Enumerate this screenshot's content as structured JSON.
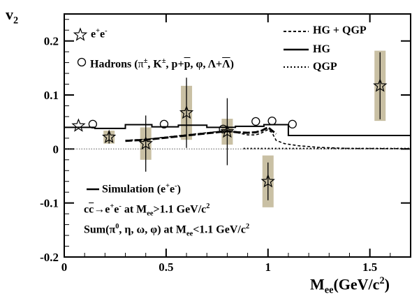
{
  "chart_data": {
    "type": "scatter",
    "xlabel": "M",
    "xlabel_sub": "ee",
    "xlabel_tail": "(GeV/c",
    "xlabel_sup": "2",
    "xlabel_close": ")",
    "ylabel": "v",
    "ylabel_sub": "2",
    "xlim": [
      0,
      1.7
    ],
    "ylim": [
      -0.2,
      0.25
    ],
    "x_ticks": [
      0,
      0.5,
      1,
      1.5
    ],
    "x_tick_labels": [
      "0",
      "0.5",
      "1",
      "1.5"
    ],
    "y_ticks": [
      -0.2,
      -0.1,
      0,
      0.1,
      0.2
    ],
    "y_tick_labels": [
      "-0.2",
      "-0.1",
      "0",
      "0.1",
      "0.2"
    ],
    "ee_points": [
      {
        "x": 0.22,
        "y": 0.022,
        "stat": 0.012,
        "sys": 0.012
      },
      {
        "x": 0.4,
        "y": 0.01,
        "stat": 0.052,
        "sys": 0.03
      },
      {
        "x": 0.6,
        "y": 0.067,
        "stat": 0.065,
        "sys": 0.05
      },
      {
        "x": 0.8,
        "y": 0.032,
        "stat": 0.062,
        "sys": 0.024
      },
      {
        "x": 1.0,
        "y": -0.06,
        "stat": 0.035,
        "sys": 0.048
      },
      {
        "x": 1.55,
        "y": 0.117,
        "stat": 0.062,
        "sys": 0.065
      }
    ],
    "hadron_points": [
      {
        "x": 0.14,
        "y": 0.046
      },
      {
        "x": 0.49,
        "y": 0.046
      },
      {
        "x": 0.78,
        "y": 0.037
      },
      {
        "x": 0.94,
        "y": 0.051
      },
      {
        "x": 1.02,
        "y": 0.052
      },
      {
        "x": 1.12,
        "y": 0.046
      }
    ],
    "simulation_steps": [
      [
        0.0,
        0.04
      ],
      [
        0.15,
        0.04
      ],
      [
        0.15,
        0.038
      ],
      [
        0.3,
        0.038
      ],
      [
        0.3,
        0.045
      ],
      [
        0.43,
        0.045
      ],
      [
        0.43,
        0.041
      ],
      [
        0.56,
        0.041
      ],
      [
        0.56,
        0.044
      ],
      [
        0.7,
        0.044
      ],
      [
        0.7,
        0.04
      ],
      [
        0.84,
        0.04
      ],
      [
        0.84,
        0.042
      ],
      [
        0.98,
        0.042
      ],
      [
        0.98,
        0.045
      ],
      [
        1.1,
        0.045
      ],
      [
        1.1,
        0.025
      ],
      [
        1.7,
        0.025
      ]
    ],
    "hg_qgp_curve": [
      [
        0.3,
        0.016
      ],
      [
        0.4,
        0.018
      ],
      [
        0.5,
        0.022
      ],
      [
        0.6,
        0.026
      ],
      [
        0.7,
        0.03
      ],
      [
        0.8,
        0.034
      ],
      [
        0.85,
        0.03
      ],
      [
        0.9,
        0.026
      ],
      [
        0.94,
        0.026
      ],
      [
        0.97,
        0.03
      ],
      [
        1.0,
        0.036
      ],
      [
        1.02,
        0.03
      ],
      [
        1.04,
        0.016
      ],
      [
        1.08,
        0.01
      ],
      [
        1.15,
        0.006
      ],
      [
        1.25,
        0.003
      ],
      [
        1.4,
        0.001
      ],
      [
        1.7,
        0.0005
      ]
    ],
    "hg_curve": [
      [
        0.3,
        0.015
      ],
      [
        0.4,
        0.017
      ],
      [
        0.5,
        0.021
      ],
      [
        0.6,
        0.025
      ],
      [
        0.7,
        0.029
      ],
      [
        0.8,
        0.033
      ],
      [
        0.85,
        0.031
      ],
      [
        0.9,
        0.03
      ],
      [
        0.94,
        0.031
      ],
      [
        0.97,
        0.034
      ],
      [
        1.0,
        0.04
      ],
      [
        1.02,
        0.034
      ],
      [
        1.04,
        0.028
      ]
    ],
    "qgp_curve": [
      [
        0.0,
        0.001
      ],
      [
        1.7,
        0.001
      ]
    ],
    "zero_line": [
      [
        0.0,
        0.0
      ],
      [
        1.7,
        0.0
      ]
    ],
    "legend": {
      "ee": "e",
      "ee_sup1": "+",
      "ee_mid": "e",
      "ee_sup2": "-",
      "hadrons_prefix": "Hadrons (",
      "pi": "π",
      "pi_sup": "±",
      "k_sep": ", K",
      "k_sup": "±",
      "ppbar_sep": ", p+",
      "pbar": "p",
      "phi_sep": ",  φ,  Λ+",
      "lambdabar": "Λ",
      "hadrons_close": ")",
      "hgqgp": "HG + QGP",
      "hg": "HG",
      "qgp": "QGP"
    },
    "notes": {
      "simulation_prefix": "Simulation (e",
      "simulation_sup1": "+",
      "simulation_mid": "e",
      "simulation_sup2": "-",
      "simulation_close": ")",
      "ccbar_c": "c",
      "ccbar_cbar": "c",
      "ccbar_arrow": "→e",
      "ccbar_sup1": "+",
      "ccbar_e": "e",
      "ccbar_sup2": "-",
      "ccbar_at": " at M",
      "ccbar_sub": "ee",
      "ccbar_tail": ">1.1 GeV/c",
      "ccbar_sup3": "2",
      "sum_prefix": "Sum(π",
      "sum_sup": "0",
      "sum_mid": ",  η,  ω,  φ) at M",
      "sum_sub": "ee",
      "sum_tail": "<1.1 GeV/c",
      "sum_sup2": "2"
    },
    "colors": {
      "band": "#c9c0a4",
      "ink": "#000000"
    }
  }
}
